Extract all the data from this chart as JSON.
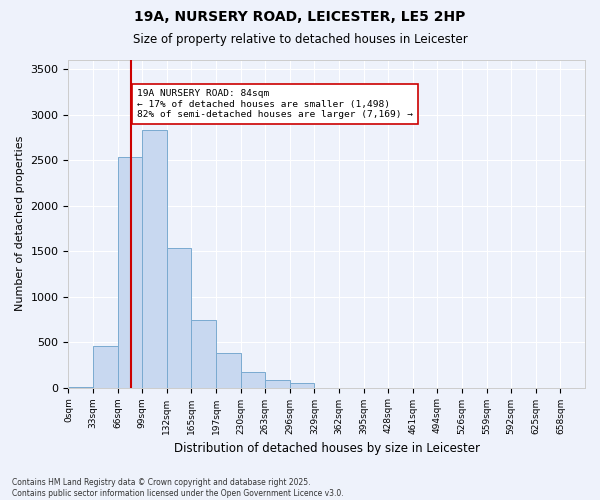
{
  "title_line1": "19A, NURSERY ROAD, LEICESTER, LE5 2HP",
  "title_line2": "Size of property relative to detached houses in Leicester",
  "xlabel": "Distribution of detached houses by size in Leicester",
  "ylabel": "Number of detached properties",
  "bar_color": "#c8d8f0",
  "bar_edge_color": "#7aaad0",
  "background_color": "#eef2fb",
  "grid_color": "#ffffff",
  "bin_labels": [
    "0sqm",
    "33sqm",
    "66sqm",
    "99sqm",
    "132sqm",
    "165sqm",
    "197sqm",
    "230sqm",
    "263sqm",
    "296sqm",
    "329sqm",
    "362sqm",
    "395sqm",
    "428sqm",
    "461sqm",
    "494sqm",
    "526sqm",
    "559sqm",
    "592sqm",
    "625sqm",
    "658sqm"
  ],
  "bar_heights": [
    10,
    460,
    2530,
    2830,
    1530,
    740,
    380,
    170,
    80,
    50,
    0,
    0,
    0,
    0,
    0,
    0,
    0,
    0,
    0,
    0,
    0
  ],
  "vline_x": 84,
  "bin_width": 33,
  "ylim": [
    0,
    3600
  ],
  "yticks": [
    0,
    500,
    1000,
    1500,
    2000,
    2500,
    3000,
    3500
  ],
  "annotation_text": "19A NURSERY ROAD: 84sqm\n← 17% of detached houses are smaller (1,498)\n82% of semi-detached houses are larger (7,169) →",
  "annotation_box_color": "#ffffff",
  "annotation_border_color": "#cc0000",
  "vline_color": "#cc0000",
  "footer_line1": "Contains HM Land Registry data © Crown copyright and database right 2025.",
  "footer_line2": "Contains public sector information licensed under the Open Government Licence v3.0."
}
